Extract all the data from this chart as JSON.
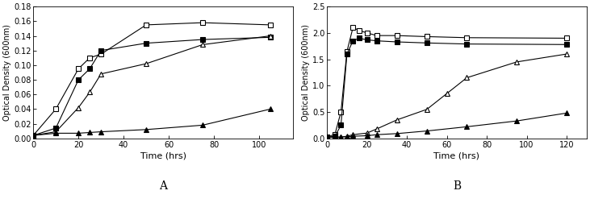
{
  "panel_A": {
    "xlabel": "Time (hrs)",
    "ylabel": "Optical Density (600nm)",
    "xlim": [
      0,
      115
    ],
    "ylim": [
      0,
      0.18
    ],
    "yticks": [
      0,
      0.02,
      0.04,
      0.06,
      0.08,
      0.1,
      0.12,
      0.14,
      0.16,
      0.18
    ],
    "xticks": [
      0,
      20,
      40,
      60,
      80,
      100
    ],
    "label": "A",
    "series": [
      {
        "x": [
          0,
          10,
          20,
          25,
          30,
          50,
          75,
          105
        ],
        "y": [
          0.004,
          0.04,
          0.095,
          0.11,
          0.115,
          0.155,
          0.158,
          0.155
        ],
        "marker": "s",
        "filled": false
      },
      {
        "x": [
          0,
          10,
          20,
          25,
          30,
          50,
          75,
          105
        ],
        "y": [
          0.004,
          0.014,
          0.08,
          0.095,
          0.12,
          0.13,
          0.135,
          0.138
        ],
        "marker": "s",
        "filled": true
      },
      {
        "x": [
          0,
          10,
          20,
          25,
          30,
          50,
          75,
          105
        ],
        "y": [
          0.004,
          0.009,
          0.042,
          0.063,
          0.088,
          0.102,
          0.128,
          0.14
        ],
        "marker": "^",
        "filled": false
      },
      {
        "x": [
          0,
          10,
          20,
          25,
          30,
          50,
          75,
          105
        ],
        "y": [
          0.004,
          0.007,
          0.007,
          0.008,
          0.009,
          0.012,
          0.018,
          0.04
        ],
        "marker": "^",
        "filled": true
      }
    ]
  },
  "panel_B": {
    "xlabel": "Time (hrs)",
    "ylabel": "Optical Density (600nm)",
    "xlim": [
      0,
      130
    ],
    "ylim": [
      0,
      2.5
    ],
    "yticks": [
      0,
      0.5,
      1.0,
      1.5,
      2.0,
      2.5
    ],
    "xticks": [
      0,
      20,
      40,
      60,
      80,
      100,
      120
    ],
    "label": "B",
    "series": [
      {
        "x": [
          0,
          4,
          7,
          10,
          13,
          16,
          20,
          25,
          35,
          50,
          70,
          120
        ],
        "y": [
          0.02,
          0.08,
          0.5,
          1.65,
          2.1,
          2.05,
          2.0,
          1.95,
          1.95,
          1.93,
          1.91,
          1.9
        ],
        "marker": "s",
        "filled": false
      },
      {
        "x": [
          0,
          4,
          7,
          10,
          13,
          16,
          20,
          25,
          35,
          50,
          70,
          120
        ],
        "y": [
          0.02,
          0.04,
          0.25,
          1.6,
          1.85,
          1.9,
          1.87,
          1.85,
          1.83,
          1.81,
          1.79,
          1.78
        ],
        "marker": "s",
        "filled": true
      },
      {
        "x": [
          0,
          4,
          7,
          10,
          13,
          20,
          25,
          35,
          50,
          60,
          70,
          95,
          120
        ],
        "y": [
          0.02,
          0.02,
          0.025,
          0.04,
          0.07,
          0.1,
          0.18,
          0.35,
          0.55,
          0.85,
          1.15,
          1.45,
          1.6
        ],
        "marker": "^",
        "filled": false
      },
      {
        "x": [
          0,
          4,
          7,
          10,
          13,
          20,
          25,
          35,
          50,
          70,
          95,
          120
        ],
        "y": [
          0.02,
          0.02,
          0.025,
          0.03,
          0.04,
          0.05,
          0.07,
          0.09,
          0.14,
          0.22,
          0.33,
          0.48
        ],
        "marker": "^",
        "filled": true
      }
    ]
  },
  "figure_bg": "#ffffff",
  "line_color": "#000000",
  "markersize": 4,
  "linewidth": 0.8
}
